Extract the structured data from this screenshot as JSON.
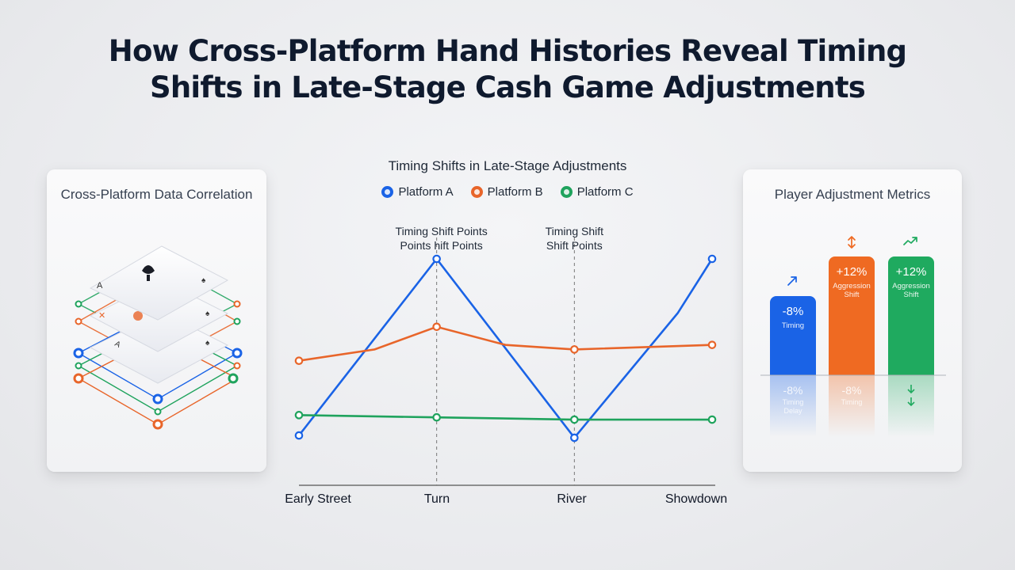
{
  "title_line1": "How Cross-Platform Hand Histories Reveal Timing",
  "title_line2": "Shifts in Late-Stage Cash Game Adjustments",
  "left_panel": {
    "title": "Cross-Platform Data Correlation"
  },
  "right_panel": {
    "title": "Player Adjustment Metrics",
    "bars": [
      {
        "value_label": "-8%",
        "caption": "Timing",
        "color": "#1a63e6",
        "icon": "trend-down-icon",
        "reflection_value": "-8%",
        "reflection_caption": "Timing Delay",
        "value": -8
      },
      {
        "value_label": "+12%",
        "caption": "Aggression Shift",
        "color": "#ef6a22",
        "icon": "up-down-arrows-icon",
        "reflection_value": "-8%",
        "reflection_caption": "Timing",
        "value": 12
      },
      {
        "value_label": "+12%",
        "caption": "Aggression Shift",
        "color": "#1faa5f",
        "icon": "trend-up-icon",
        "reflection_value": "",
        "reflection_caption": "",
        "value": 12
      }
    ]
  },
  "chart_data": {
    "type": "line",
    "title": "Timing Shifts in Late-Stage Adjustments",
    "categories": [
      "Early Street",
      "Turn",
      "River",
      "Showdown"
    ],
    "x": [
      0,
      1,
      2,
      3
    ],
    "series": [
      {
        "name": "Platform A",
        "color": "#1a63e6",
        "points": [
          [
            0,
            22
          ],
          [
            1,
            100
          ],
          [
            2,
            21
          ],
          [
            2.75,
            76
          ],
          [
            3,
            100
          ]
        ]
      },
      {
        "name": "Platform B",
        "color": "#e8652a",
        "points": [
          [
            0,
            55
          ],
          [
            0.55,
            60
          ],
          [
            1,
            70
          ],
          [
            1.5,
            62
          ],
          [
            2,
            60
          ],
          [
            3,
            62
          ]
        ]
      },
      {
        "name": "Platform C",
        "color": "#1fa35d",
        "points": [
          [
            0,
            31
          ],
          [
            1,
            30
          ],
          [
            2,
            29
          ],
          [
            3,
            29
          ]
        ]
      }
    ],
    "ylim": [
      0,
      110
    ],
    "xlim": [
      -0.1,
      3.0
    ],
    "markers_at": [
      0,
      1,
      2,
      3
    ],
    "annotations": [
      {
        "at": 1,
        "lines": [
          "Timing Shift Points",
          "Points hift Points"
        ]
      },
      {
        "at": 2,
        "lines": [
          "Timing Shift",
          "Shift Points"
        ]
      }
    ],
    "legend": "top-center",
    "grid": false
  }
}
